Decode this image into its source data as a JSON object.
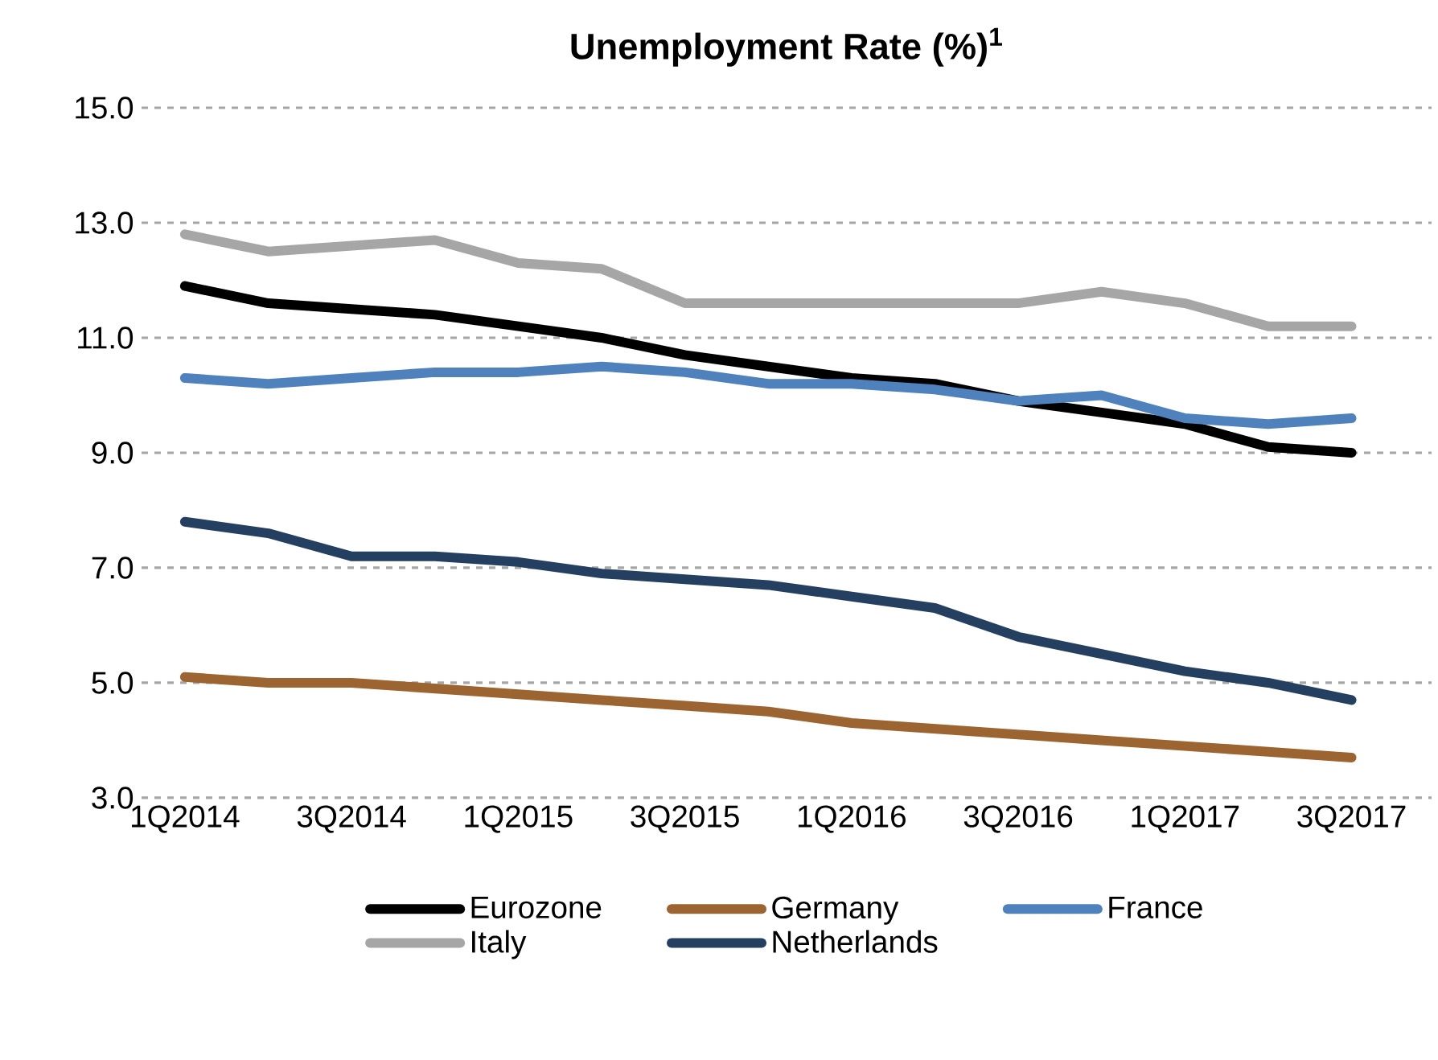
{
  "chart_data": {
    "type": "line",
    "title": "Unemployment Rate (%)$^{1}$",
    "categories": [
      "1Q2014",
      null,
      "3Q2014",
      null,
      "1Q2015",
      null,
      "3Q2015",
      null,
      "1Q2016",
      null,
      "3Q2016",
      null,
      "1Q2017",
      null,
      "3Q2017"
    ],
    "series": [
      {
        "name": "Eurozone",
        "color": "#000000",
        "values": [
          11.9,
          11.6,
          11.5,
          11.4,
          11.2,
          11.0,
          10.7,
          10.5,
          10.3,
          10.2,
          9.9,
          9.7,
          9.5,
          9.1,
          9.0
        ]
      },
      {
        "name": "Germany",
        "color": "#9c6430",
        "values": [
          5.1,
          5.0,
          5.0,
          4.9,
          4.8,
          4.7,
          4.6,
          4.5,
          4.3,
          4.2,
          4.1,
          4.0,
          3.9,
          3.8,
          3.7
        ]
      },
      {
        "name": "France",
        "color": "#4f81bd",
        "values": [
          10.3,
          10.2,
          10.3,
          10.4,
          10.4,
          10.5,
          10.4,
          10.2,
          10.2,
          10.1,
          9.9,
          10.0,
          9.6,
          9.5,
          9.6
        ]
      },
      {
        "name": "Italy",
        "color": "#a6a6a6",
        "values": [
          12.8,
          12.5,
          12.6,
          12.7,
          12.3,
          12.2,
          11.6,
          11.6,
          11.6,
          11.6,
          11.6,
          11.8,
          11.6,
          11.2,
          11.2
        ]
      },
      {
        "name": "Netherlands",
        "color": "#243f60",
        "values": [
          7.8,
          7.6,
          7.2,
          7.2,
          7.1,
          6.9,
          6.8,
          6.7,
          6.5,
          6.3,
          5.8,
          5.5,
          5.2,
          5.0,
          4.7
        ]
      }
    ],
    "ylim": [
      3,
      15
    ],
    "yticks": [
      {
        "value": 3,
        "label": "3.0"
      },
      {
        "value": 5,
        "label": "5.0"
      },
      {
        "value": 7,
        "label": "7.0"
      },
      {
        "value": 9,
        "label": "9.0"
      },
      {
        "value": 11,
        "label": "11.0"
      },
      {
        "value": 13,
        "label": "13.0"
      },
      {
        "value": 15,
        "label": "15.0"
      }
    ],
    "grid": "y",
    "legend": "bottom",
    "line_style": "solid"
  }
}
